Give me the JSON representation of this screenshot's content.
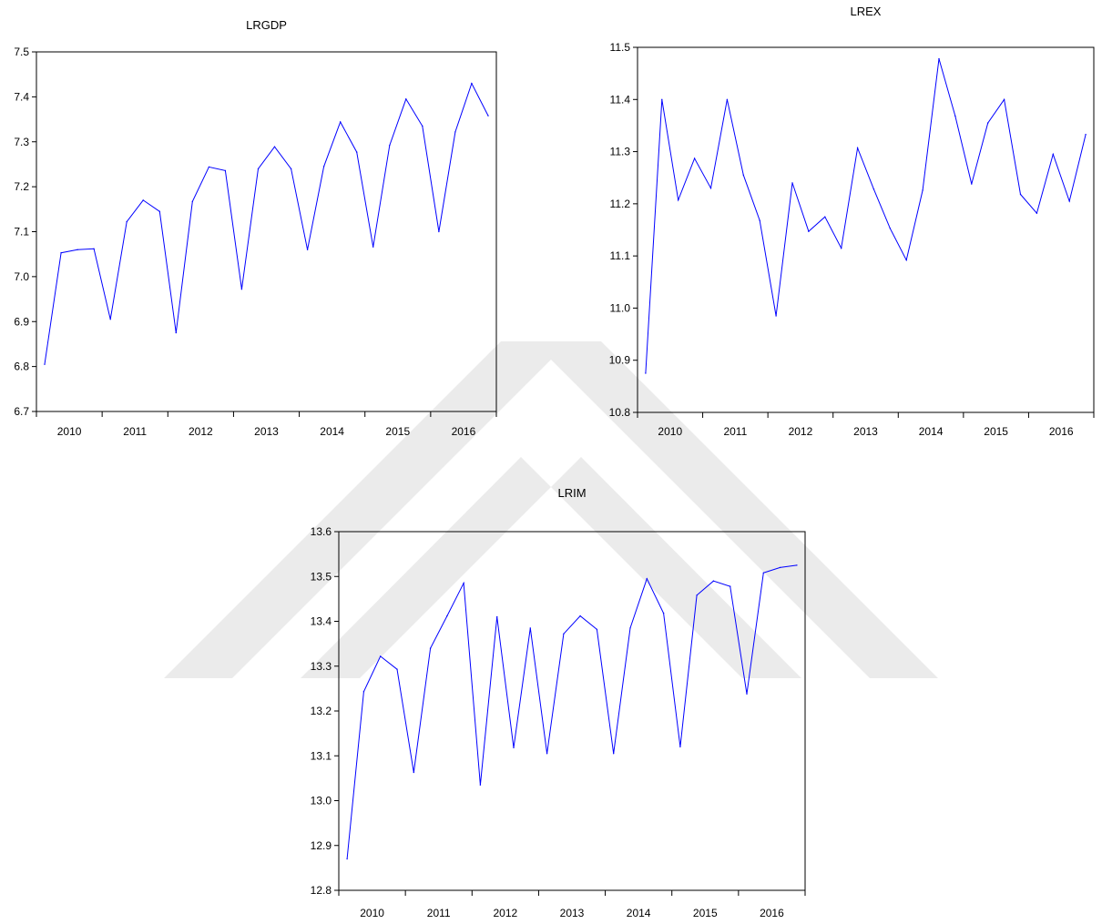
{
  "watermark": {
    "color": "#ebebeb"
  },
  "chart_data": [
    {
      "type": "line",
      "title": "LRGDP",
      "x": [
        2010,
        2010.25,
        2010.5,
        2010.75,
        2011,
        2011.25,
        2011.5,
        2011.75,
        2012,
        2012.25,
        2012.5,
        2012.75,
        2013,
        2013.25,
        2013.5,
        2013.75,
        2014,
        2014.25,
        2014.5,
        2014.75,
        2015,
        2015.25,
        2015.5,
        2015.75,
        2016,
        2016.25,
        2016.5,
        2016.75
      ],
      "xlim": [
        2009.875,
        2016.875
      ],
      "xticklabels": [
        "2010",
        "2011",
        "2012",
        "2013",
        "2014",
        "2015",
        "2016"
      ],
      "ylim": [
        6.7,
        7.5
      ],
      "yticklabels": [
        "6.7",
        "6.8",
        "6.9",
        "7.0",
        "7.1",
        "7.2",
        "7.3",
        "7.4",
        "7.5"
      ],
      "grid": false,
      "series": [
        {
          "color": "#0000ff",
          "values": [
            6.805,
            7.053,
            7.06,
            7.062,
            6.905,
            7.122,
            7.17,
            7.145,
            6.875,
            7.167,
            7.244,
            7.236,
            6.972,
            7.24,
            7.289,
            7.24,
            7.06,
            7.245,
            7.344,
            7.277,
            7.066,
            7.292,
            7.395,
            7.335,
            7.1,
            7.322,
            7.43,
            7.358
          ]
        }
      ]
    },
    {
      "type": "line",
      "title": "LREX",
      "x": [
        2010,
        2010.25,
        2010.5,
        2010.75,
        2011,
        2011.25,
        2011.5,
        2011.75,
        2012,
        2012.25,
        2012.5,
        2012.75,
        2013,
        2013.25,
        2013.5,
        2013.75,
        2014,
        2014.25,
        2014.5,
        2014.75,
        2015,
        2015.25,
        2015.5,
        2015.75,
        2016,
        2016.25,
        2016.5,
        2016.75
      ],
      "xlim": [
        2009.875,
        2016.875
      ],
      "xticklabels": [
        "2010",
        "2011",
        "2012",
        "2013",
        "2014",
        "2015",
        "2016"
      ],
      "ylim": [
        10.8,
        11.5
      ],
      "yticklabels": [
        "10.8",
        "10.9",
        "11.0",
        "11.1",
        "11.2",
        "11.3",
        "11.4",
        "11.5"
      ],
      "grid": false,
      "series": [
        {
          "color": "#0000ff",
          "values": [
            10.875,
            11.4,
            11.207,
            11.287,
            11.23,
            11.4,
            11.255,
            11.168,
            10.985,
            11.24,
            11.147,
            11.175,
            11.115,
            11.307,
            11.228,
            11.153,
            11.092,
            11.226,
            11.478,
            11.368,
            11.238,
            11.355,
            11.4,
            11.218,
            11.182,
            11.295,
            11.205,
            11.333
          ]
        }
      ]
    },
    {
      "type": "line",
      "title": "LRIM",
      "x": [
        2010,
        2010.25,
        2010.5,
        2010.75,
        2011,
        2011.25,
        2011.5,
        2011.75,
        2012,
        2012.25,
        2012.5,
        2012.75,
        2013,
        2013.25,
        2013.5,
        2013.75,
        2014,
        2014.25,
        2014.5,
        2014.75,
        2015,
        2015.25,
        2015.5,
        2015.75,
        2016,
        2016.25,
        2016.5,
        2016.75
      ],
      "xlim": [
        2009.875,
        2016.875
      ],
      "xticklabels": [
        "2010",
        "2011",
        "2012",
        "2013",
        "2014",
        "2015",
        "2016"
      ],
      "ylim": [
        12.8,
        13.6
      ],
      "yticklabels": [
        "12.8",
        "12.9",
        "13.0",
        "13.1",
        "13.2",
        "13.3",
        "13.4",
        "13.5",
        "13.6"
      ],
      "grid": false,
      "series": [
        {
          "color": "#0000ff",
          "values": [
            12.87,
            13.243,
            13.322,
            13.293,
            13.063,
            13.34,
            13.412,
            13.485,
            13.035,
            13.41,
            13.118,
            13.385,
            13.105,
            13.372,
            13.412,
            13.382,
            13.105,
            13.385,
            13.495,
            13.418,
            13.12,
            13.458,
            13.49,
            13.478,
            13.238,
            13.508,
            13.52,
            13.525
          ]
        }
      ]
    }
  ]
}
